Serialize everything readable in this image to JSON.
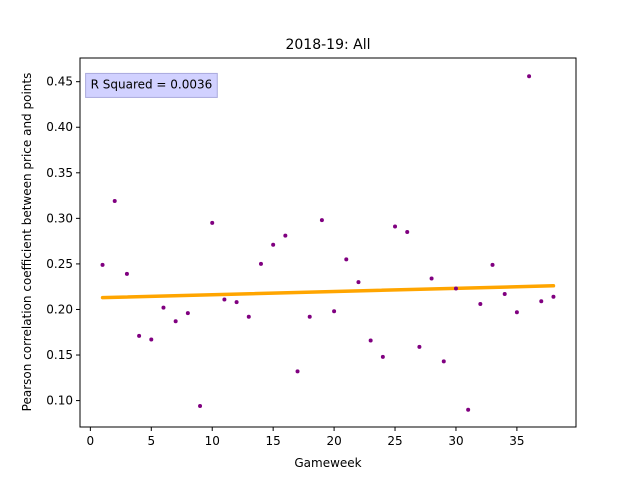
{
  "chart_data": {
    "type": "scatter",
    "title": "2018-19: All",
    "xlabel": "Gameweek",
    "ylabel": "Pearson correlation coefficient between price and points",
    "xlim": [
      -0.85,
      39.85
    ],
    "ylim": [
      0.071,
      0.476
    ],
    "xticks": [
      0,
      5,
      10,
      15,
      20,
      25,
      30,
      35
    ],
    "xtick_labels": [
      "0",
      "5",
      "10",
      "15",
      "20",
      "25",
      "30",
      "35"
    ],
    "yticks": [
      0.1,
      0.15,
      0.2,
      0.25,
      0.3,
      0.35,
      0.4,
      0.45
    ],
    "ytick_labels": [
      "0.10",
      "0.15",
      "0.20",
      "0.25",
      "0.30",
      "0.35",
      "0.40",
      "0.45"
    ],
    "grid": false,
    "points": {
      "color": "#800080",
      "x": [
        1,
        2,
        3,
        4,
        5,
        6,
        7,
        8,
        9,
        10,
        11,
        12,
        13,
        14,
        15,
        16,
        17,
        18,
        19,
        20,
        21,
        22,
        23,
        24,
        25,
        26,
        27,
        28,
        29,
        30,
        31,
        32,
        33,
        34,
        35,
        36,
        37,
        38
      ],
      "y": [
        0.249,
        0.319,
        0.239,
        0.171,
        0.167,
        0.202,
        0.187,
        0.196,
        0.094,
        0.295,
        0.211,
        0.208,
        0.192,
        0.25,
        0.271,
        0.281,
        0.132,
        0.192,
        0.298,
        0.198,
        0.255,
        0.23,
        0.166,
        0.148,
        0.291,
        0.285,
        0.159,
        0.234,
        0.143,
        0.223,
        0.09,
        0.206,
        0.249,
        0.217,
        0.197,
        0.456,
        0.209,
        0.214
      ]
    },
    "regression": {
      "color": "#ffa500",
      "x": [
        1,
        38
      ],
      "y": [
        0.213,
        0.226
      ]
    },
    "annotation": {
      "text": "R Squared = 0.0036",
      "x": 0.02,
      "y": 0.447,
      "box_color": "#ccccff"
    }
  }
}
